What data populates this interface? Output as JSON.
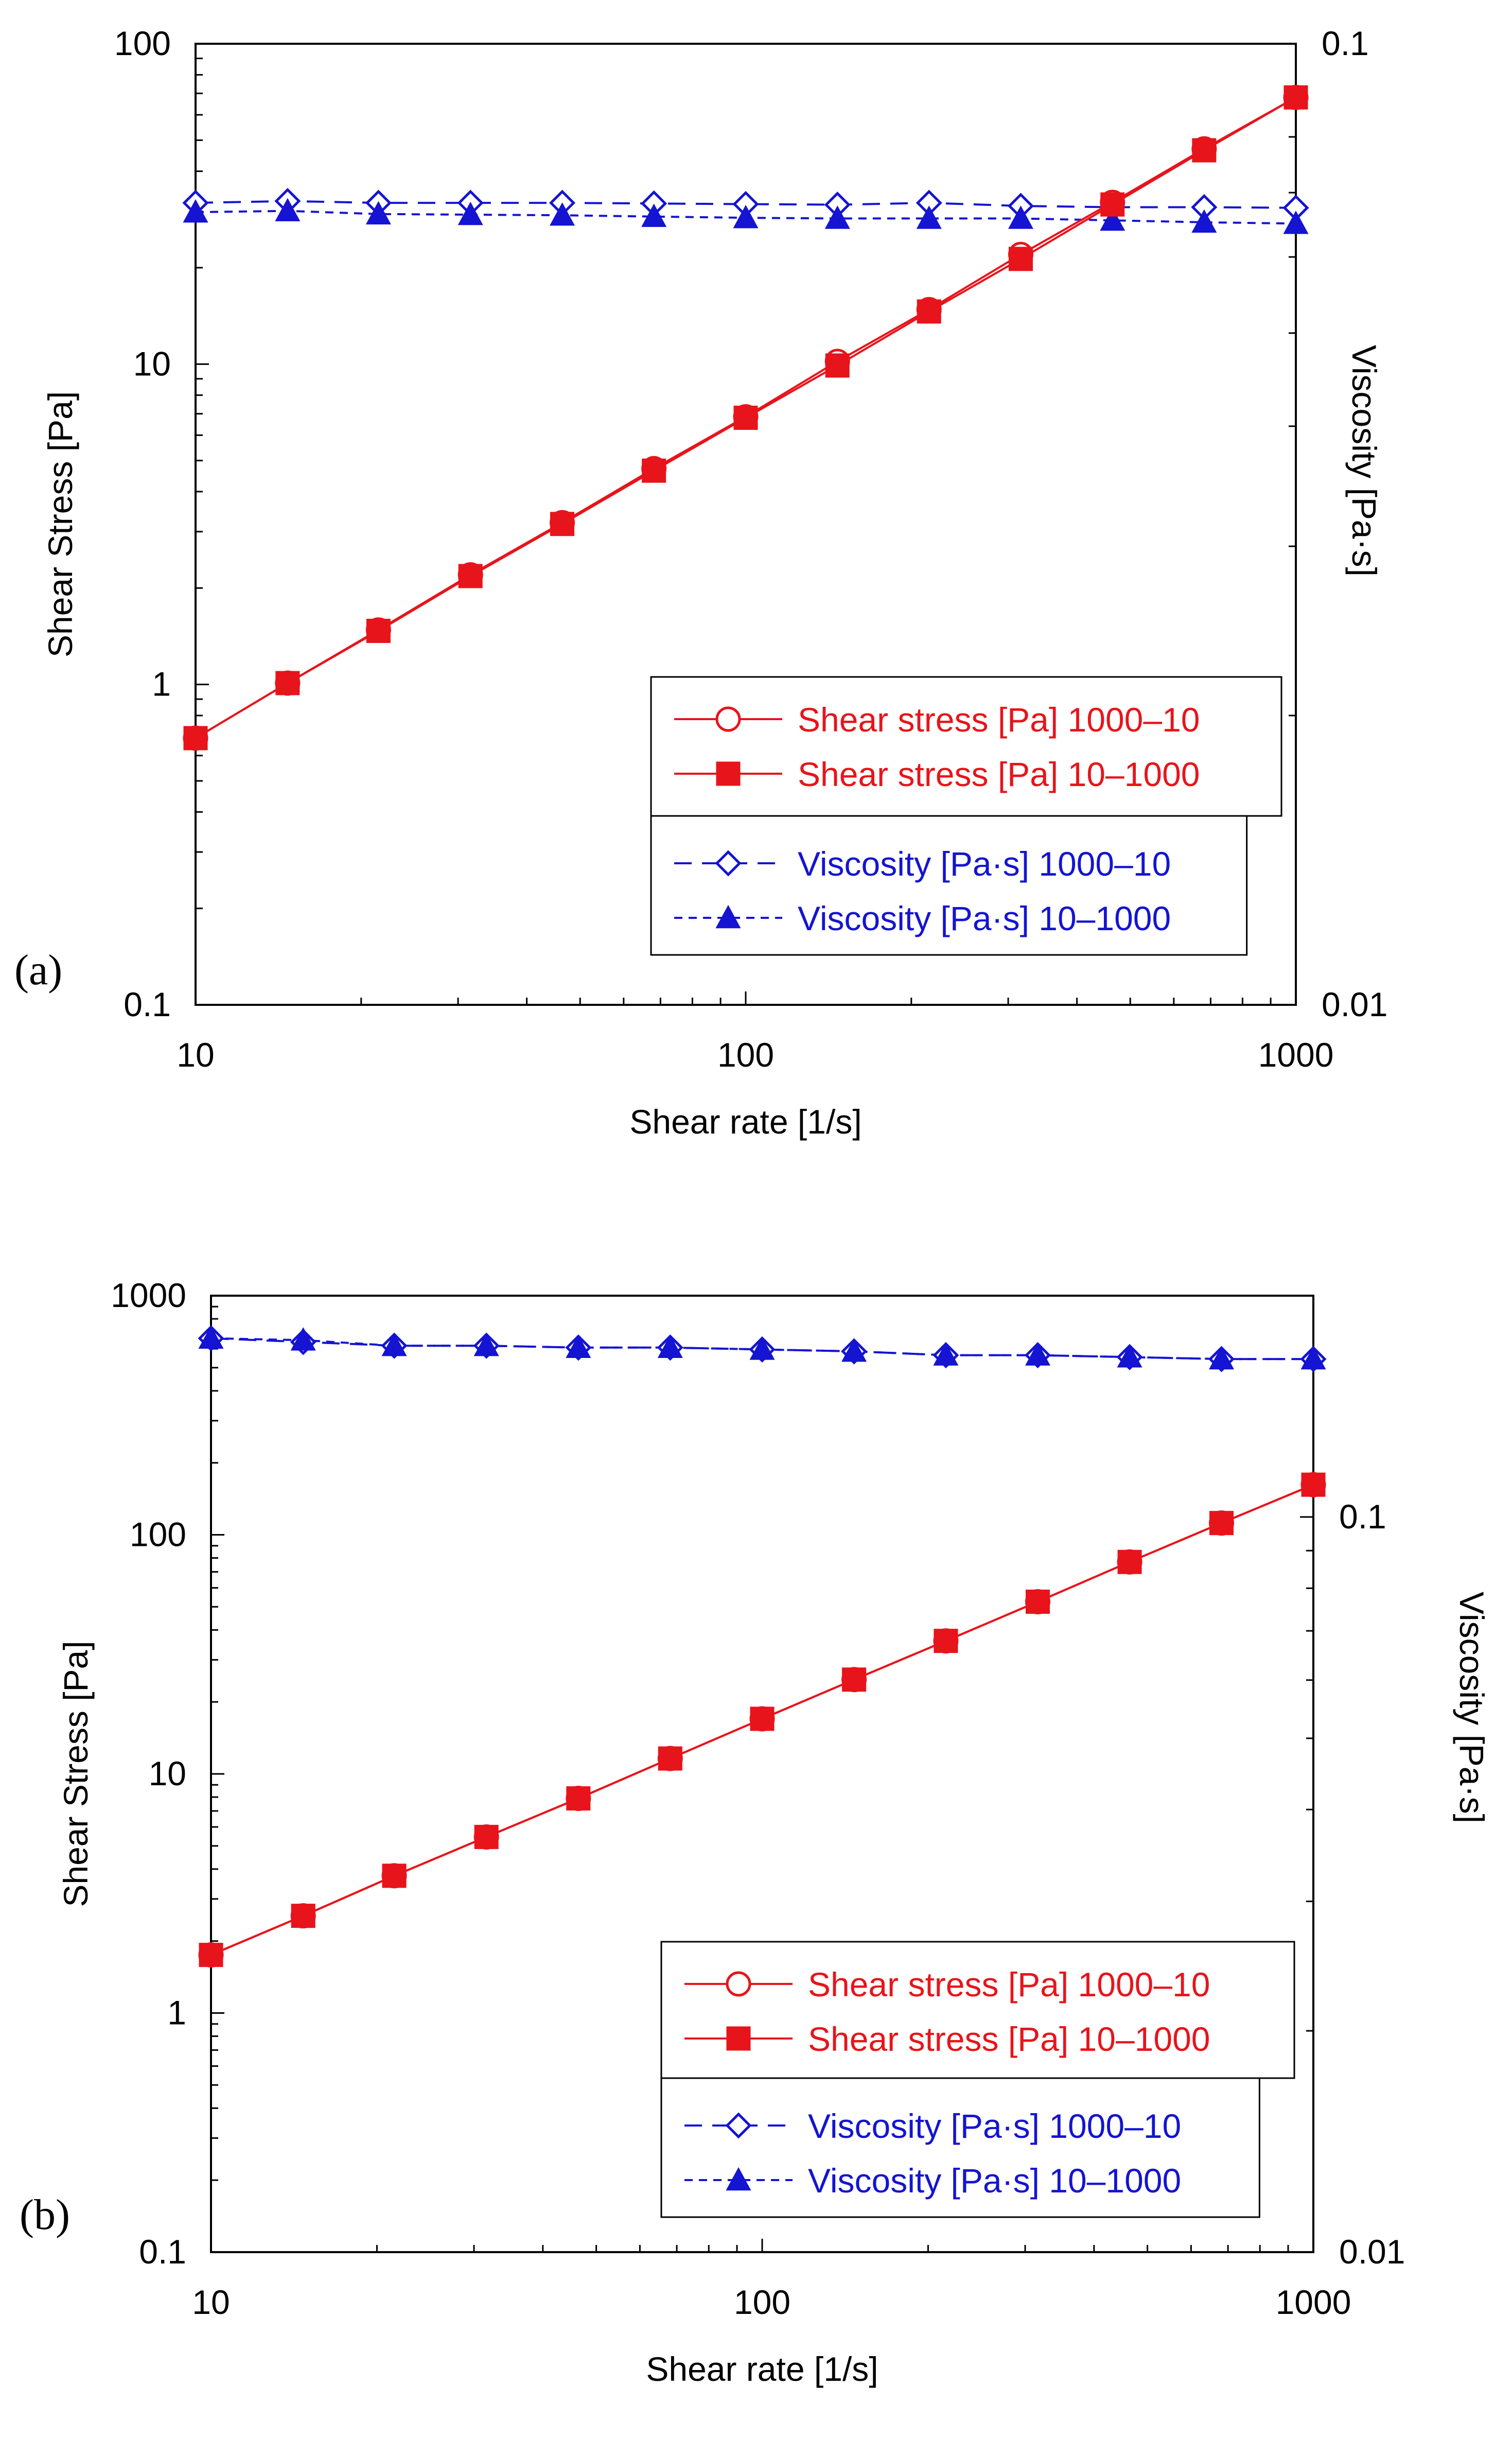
{
  "colors": {
    "stress": "#e8141b",
    "viscosity": "#1414d2",
    "axis": "#000000"
  },
  "legend_labels": {
    "stress_down": "Shear stress [Pa] 1000–10",
    "stress_up": "Shear stress [Pa] 10–1000",
    "visc_down": "Viscosity [Pa·s] 1000–10",
    "visc_up": "Viscosity [Pa·s] 10–1000"
  },
  "chart_data": [
    {
      "type": "line",
      "panel_label": "(a)",
      "xlabel": "Shear rate [1/s]",
      "ylabel": "Shear Stress [Pa]",
      "y2label": "Viscosity [Pa·s]",
      "xscale": "log",
      "yscale": "log",
      "y2scale": "log",
      "xlim": [
        10,
        1000
      ],
      "ylim": [
        0.1,
        100
      ],
      "y2lim": [
        0.01,
        0.1
      ],
      "xticks": [
        "10",
        "100",
        "1000"
      ],
      "yticks": [
        "0.1",
        "1",
        "10",
        "100"
      ],
      "y2ticks": [
        "0.01",
        "0.1"
      ],
      "legend_position": "bottom-right",
      "x": [
        10,
        14.7,
        21.5,
        31.6,
        46.4,
        68.1,
        100,
        146.8,
        215.4,
        316.2,
        464.2,
        681.3,
        1000
      ],
      "series": [
        {
          "name": "Shear stress [Pa] 1000–10",
          "axis": "left",
          "marker": "circle-open",
          "line": "solid",
          "values": [
            0.68,
            1.01,
            1.48,
            2.2,
            3.2,
            4.72,
            6.85,
            10.2,
            14.8,
            22.0,
            32.0,
            47.0,
            68.0
          ]
        },
        {
          "name": "Shear stress [Pa] 10–1000",
          "axis": "left",
          "marker": "square-filled",
          "line": "solid",
          "values": [
            0.68,
            1.01,
            1.47,
            2.18,
            3.17,
            4.65,
            6.8,
            9.9,
            14.6,
            21.3,
            31.5,
            46.5,
            68.0
          ]
        },
        {
          "name": "Viscosity [Pa·s] 1000–10",
          "axis": "right",
          "marker": "diamond-open",
          "line": "long-dash",
          "values": [
            0.0683,
            0.0686,
            0.0683,
            0.0683,
            0.0683,
            0.0682,
            0.0681,
            0.068,
            0.0683,
            0.0678,
            0.0676,
            0.0676,
            0.0675
          ]
        },
        {
          "name": "Viscosity [Pa·s] 10–1000",
          "axis": "right",
          "marker": "triangle-filled",
          "line": "short-dash",
          "values": [
            0.0668,
            0.067,
            0.0665,
            0.0664,
            0.0663,
            0.0661,
            0.0659,
            0.0658,
            0.0658,
            0.0658,
            0.0655,
            0.0652,
            0.065
          ]
        }
      ]
    },
    {
      "type": "line",
      "panel_label": "(b)",
      "xlabel": "Shear rate [1/s]",
      "ylabel": "Shear Stress [Pa]",
      "y2label": "Viscosity [Pa·s]",
      "xscale": "log",
      "yscale": "log",
      "y2scale": "log",
      "xlim": [
        10,
        1000
      ],
      "ylim": [
        0.1,
        1000
      ],
      "y2lim": [
        0.01,
        0.2
      ],
      "xticks": [
        "10",
        "100",
        "1000"
      ],
      "yticks": [
        "0.1",
        "1",
        "10",
        "100",
        "1000"
      ],
      "y2ticks": [
        "0.01",
        "0.1"
      ],
      "legend_position": "bottom-right",
      "x": [
        10,
        14.7,
        21.5,
        31.6,
        46.4,
        68.1,
        100,
        146.8,
        215.4,
        316.2,
        464.2,
        681.3,
        1000
      ],
      "series": [
        {
          "name": "Shear stress [Pa] 1000–10",
          "axis": "left",
          "marker": "circle-open",
          "line": "solid",
          "values": [
            1.75,
            2.55,
            3.75,
            5.45,
            7.9,
            11.6,
            17.0,
            24.8,
            36.0,
            52.5,
            77.0,
            112.0,
            162.0
          ]
        },
        {
          "name": "Shear stress [Pa] 10–1000",
          "axis": "left",
          "marker": "square-filled",
          "line": "solid",
          "values": [
            1.75,
            2.55,
            3.75,
            5.45,
            7.9,
            11.6,
            17.0,
            24.8,
            36.0,
            52.5,
            77.0,
            112.0,
            162.0
          ]
        },
        {
          "name": "Viscosity [Pa·s] 1000–10",
          "axis": "right",
          "marker": "diamond-open",
          "line": "long-dash",
          "values": [
            0.175,
            0.173,
            0.171,
            0.171,
            0.17,
            0.17,
            0.169,
            0.168,
            0.166,
            0.166,
            0.165,
            0.164,
            0.164
          ]
        },
        {
          "name": "Viscosity [Pa·s] 10–1000",
          "axis": "right",
          "marker": "triangle-filled",
          "line": "short-dash",
          "values": [
            0.175,
            0.174,
            0.171,
            0.171,
            0.17,
            0.17,
            0.169,
            0.168,
            0.166,
            0.166,
            0.165,
            0.164,
            0.164
          ]
        }
      ]
    }
  ]
}
